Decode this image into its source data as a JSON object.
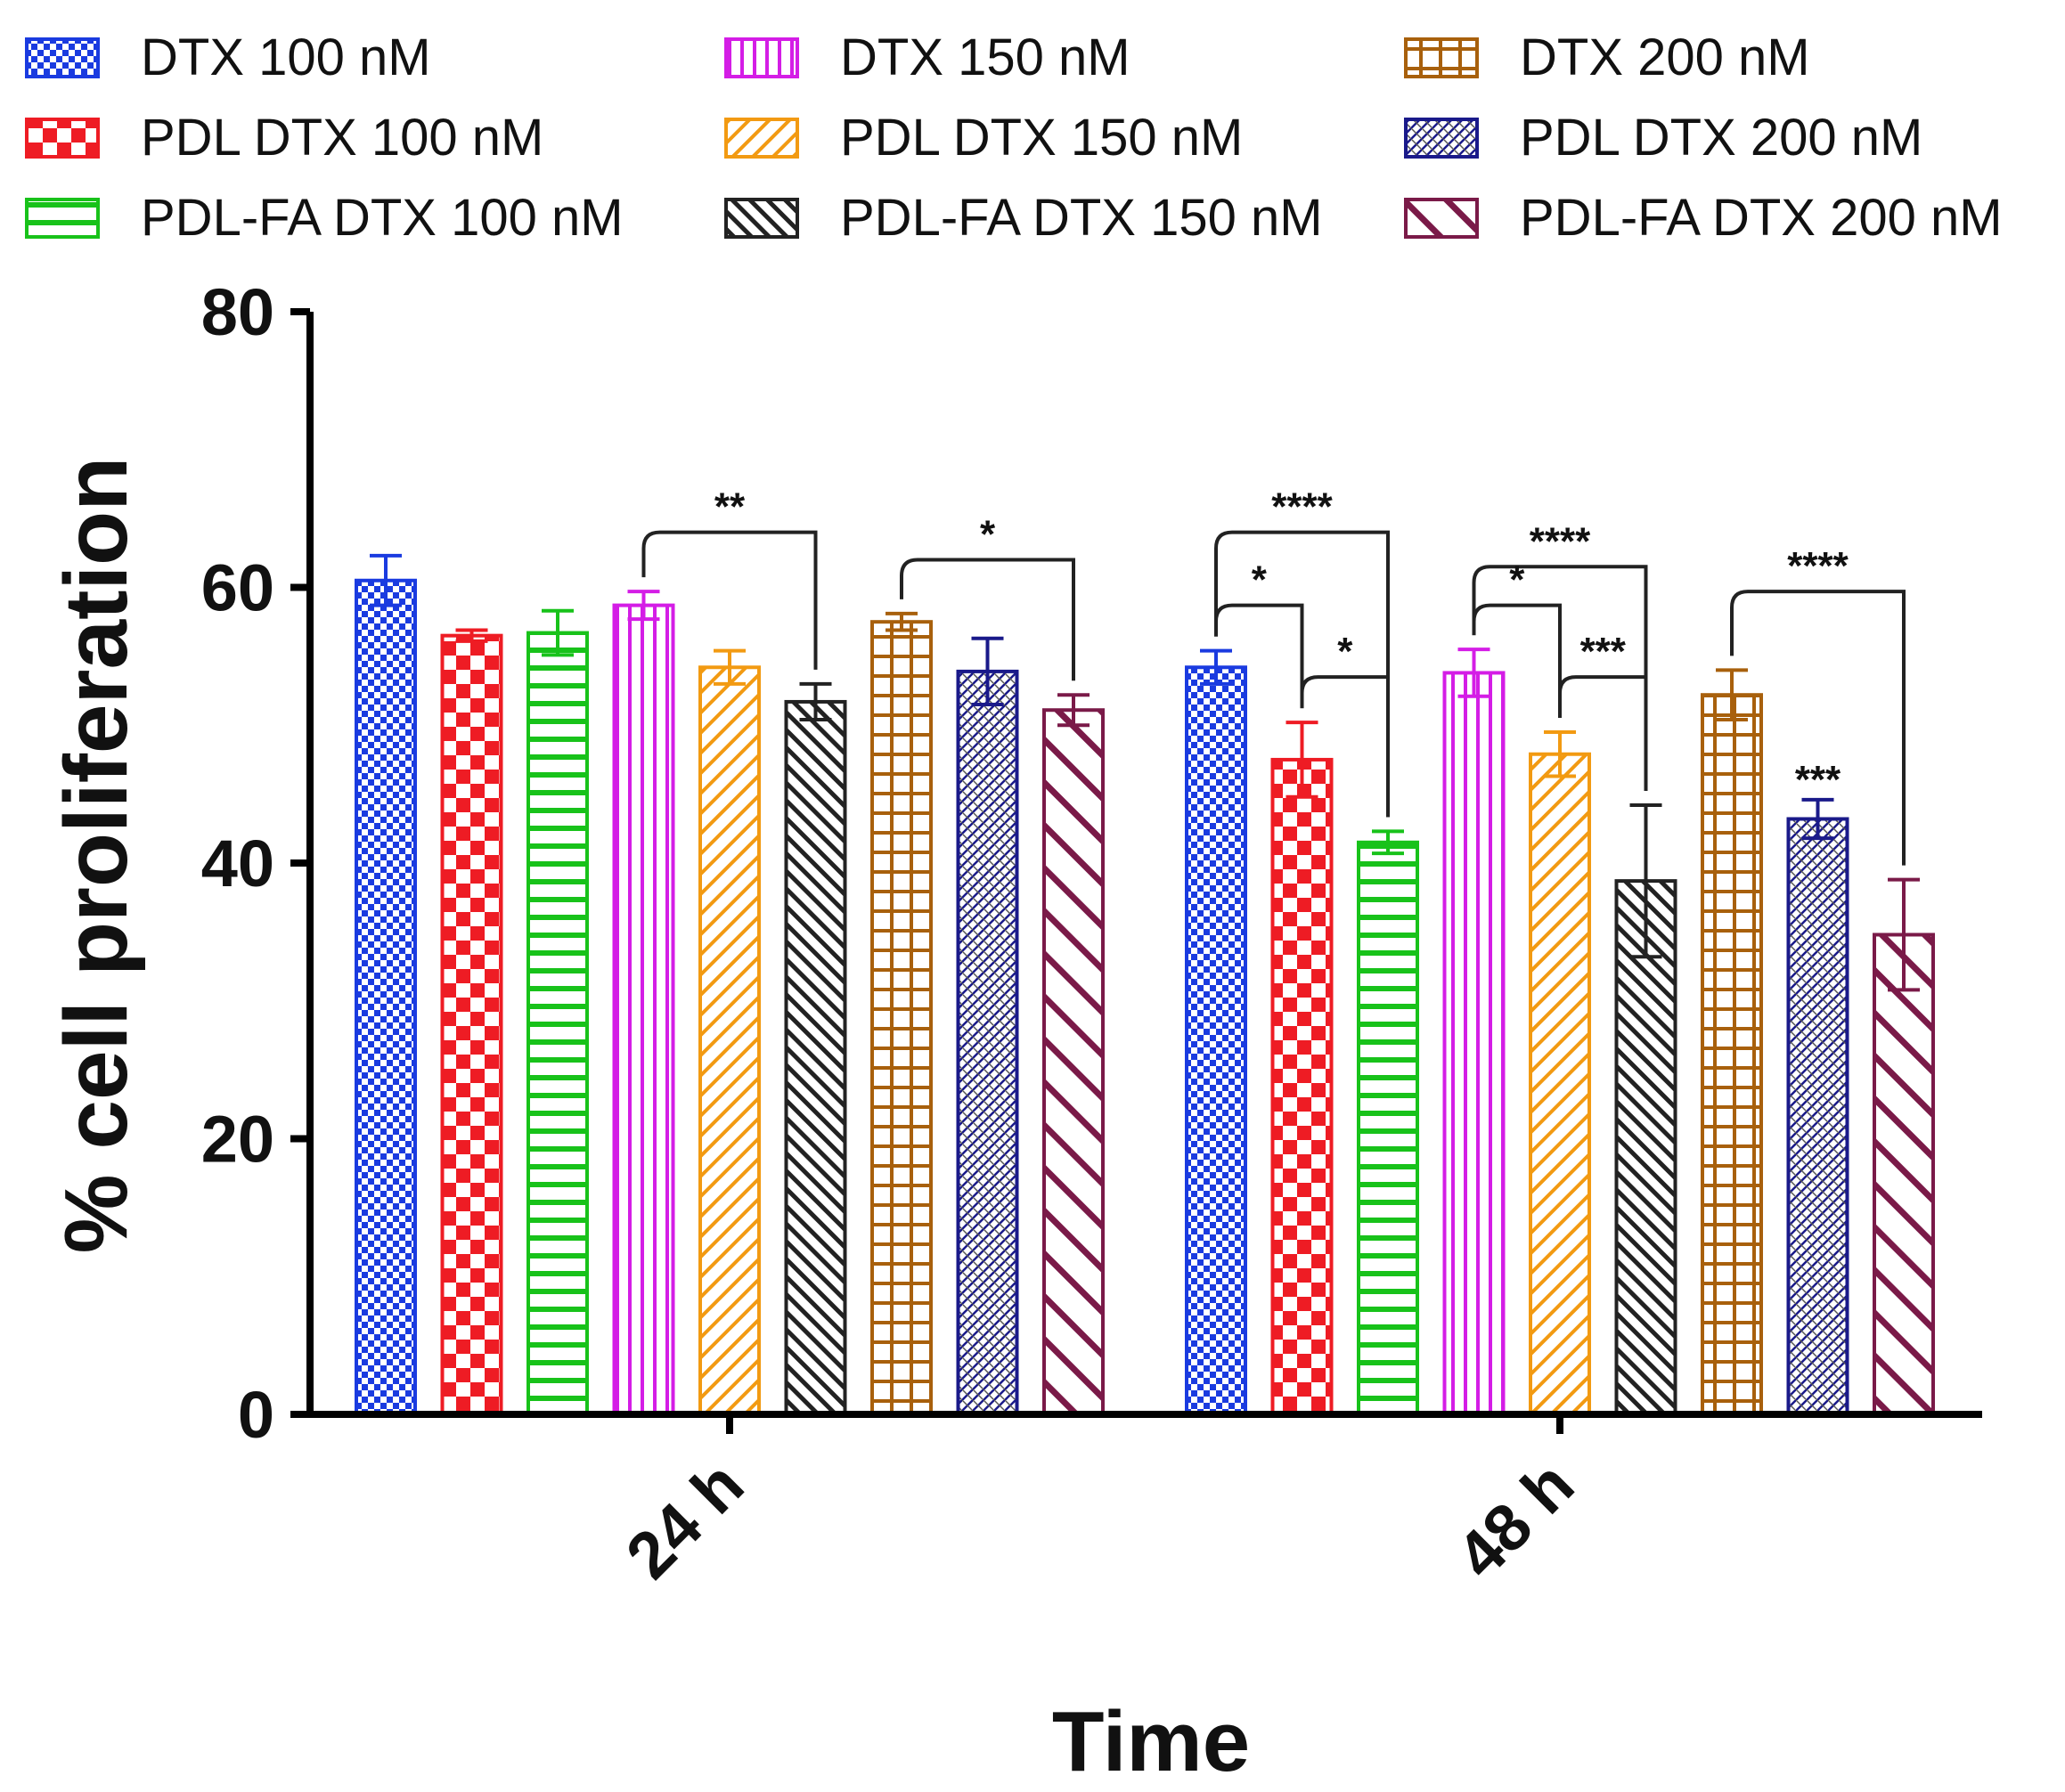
{
  "chart_data": {
    "type": "bar",
    "title": "",
    "xlabel": "Time",
    "ylabel": "% cell proliferation",
    "ylim": [
      0,
      80
    ],
    "yticks": [
      0,
      20,
      40,
      60,
      80
    ],
    "categories": [
      "24 h",
      "48 h"
    ],
    "legend_position": "top",
    "series": [
      {
        "name": "DTX 100 nM",
        "color": "#1a3be0",
        "pattern": "checker-fine",
        "values": [
          60.5,
          54.2
        ],
        "errors": [
          1.8,
          1.2
        ]
      },
      {
        "name": "PDL DTX 100 nM",
        "color": "#ee1c24",
        "pattern": "checker-coarse",
        "values": [
          56.5,
          47.5
        ],
        "errors": [
          0.4,
          2.7
        ]
      },
      {
        "name": "PDL-FA DTX 100 nM",
        "color": "#18c21a",
        "pattern": "horizontal",
        "values": [
          56.7,
          41.5
        ],
        "errors": [
          1.6,
          0.8
        ]
      },
      {
        "name": "DTX 150 nM",
        "color": "#d41de6",
        "pattern": "vertical",
        "values": [
          58.7,
          53.8
        ],
        "errors": [
          1.0,
          1.7
        ]
      },
      {
        "name": "PDL DTX 150 nM",
        "color": "#f29a12",
        "pattern": "diag-fine",
        "values": [
          54.2,
          47.9
        ],
        "errors": [
          1.2,
          1.6
        ]
      },
      {
        "name": "PDL-FA DTX 150 nM",
        "color": "#222222",
        "pattern": "back-diag-fine",
        "values": [
          51.7,
          38.7
        ],
        "errors": [
          1.3,
          5.5
        ]
      },
      {
        "name": "DTX 200 nM",
        "color": "#a8600c",
        "pattern": "grid",
        "values": [
          57.5,
          52.2
        ],
        "errors": [
          0.6,
          1.8
        ]
      },
      {
        "name": "PDL DTX 200 nM",
        "color": "#1a1a8a",
        "pattern": "cross-hatch",
        "values": [
          53.9,
          43.2
        ],
        "errors": [
          2.4,
          1.4
        ]
      },
      {
        "name": "PDL-FA DTX 200 nM",
        "color": "#7a1a48",
        "pattern": "back-diag-coarse",
        "values": [
          51.1,
          34.8
        ],
        "errors": [
          1.1,
          4.0
        ]
      }
    ],
    "significance": [
      {
        "label": "**",
        "group": 0,
        "from": 3,
        "to": 5,
        "level": 64.0
      },
      {
        "label": "*",
        "group": 0,
        "from": 6,
        "to": 8,
        "level": 62.0
      },
      {
        "label": "****",
        "group": 1,
        "from": 0,
        "to": 2,
        "level": 64.0
      },
      {
        "label": "*",
        "group": 1,
        "from": 0,
        "to": 1,
        "level": 58.7
      },
      {
        "label": "*",
        "group": 1,
        "from": 1,
        "to": 2,
        "level": 53.5
      },
      {
        "label": "****",
        "group": 1,
        "from": 3,
        "to": 5,
        "level": 61.5
      },
      {
        "label": "*",
        "group": 1,
        "from": 3,
        "to": 4,
        "level": 58.7
      },
      {
        "label": "***",
        "group": 1,
        "from": 4,
        "to": 5,
        "level": 53.5
      },
      {
        "label": "****",
        "group": 1,
        "from": 6,
        "to": 8,
        "level": 59.7
      },
      {
        "label": "***",
        "group": 1,
        "single": 7,
        "level": 46.0
      }
    ]
  }
}
